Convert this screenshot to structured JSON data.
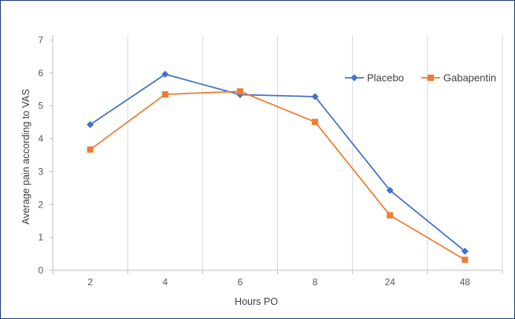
{
  "chart_data": {
    "type": "line",
    "categories": [
      "2",
      "4",
      "6",
      "8",
      "24",
      "48"
    ],
    "series": [
      {
        "name": "Placebo",
        "values": [
          4.43,
          5.96,
          5.34,
          5.28,
          2.43,
          0.58
        ],
        "color": "#4472c4",
        "marker": "diamond"
      },
      {
        "name": "Gabapentin",
        "values": [
          3.67,
          5.35,
          5.44,
          4.51,
          1.67,
          0.32
        ],
        "color": "#ed7d31",
        "marker": "square"
      }
    ],
    "title": "",
    "xlabel": "Hours PO",
    "ylabel": "Average pain according to VAS",
    "ylim": [
      0,
      7
    ],
    "yticks": [
      "0",
      "1",
      "2",
      "3",
      "4",
      "5",
      "6",
      "7"
    ],
    "grid": "vertical",
    "legend_position": "top-right"
  }
}
